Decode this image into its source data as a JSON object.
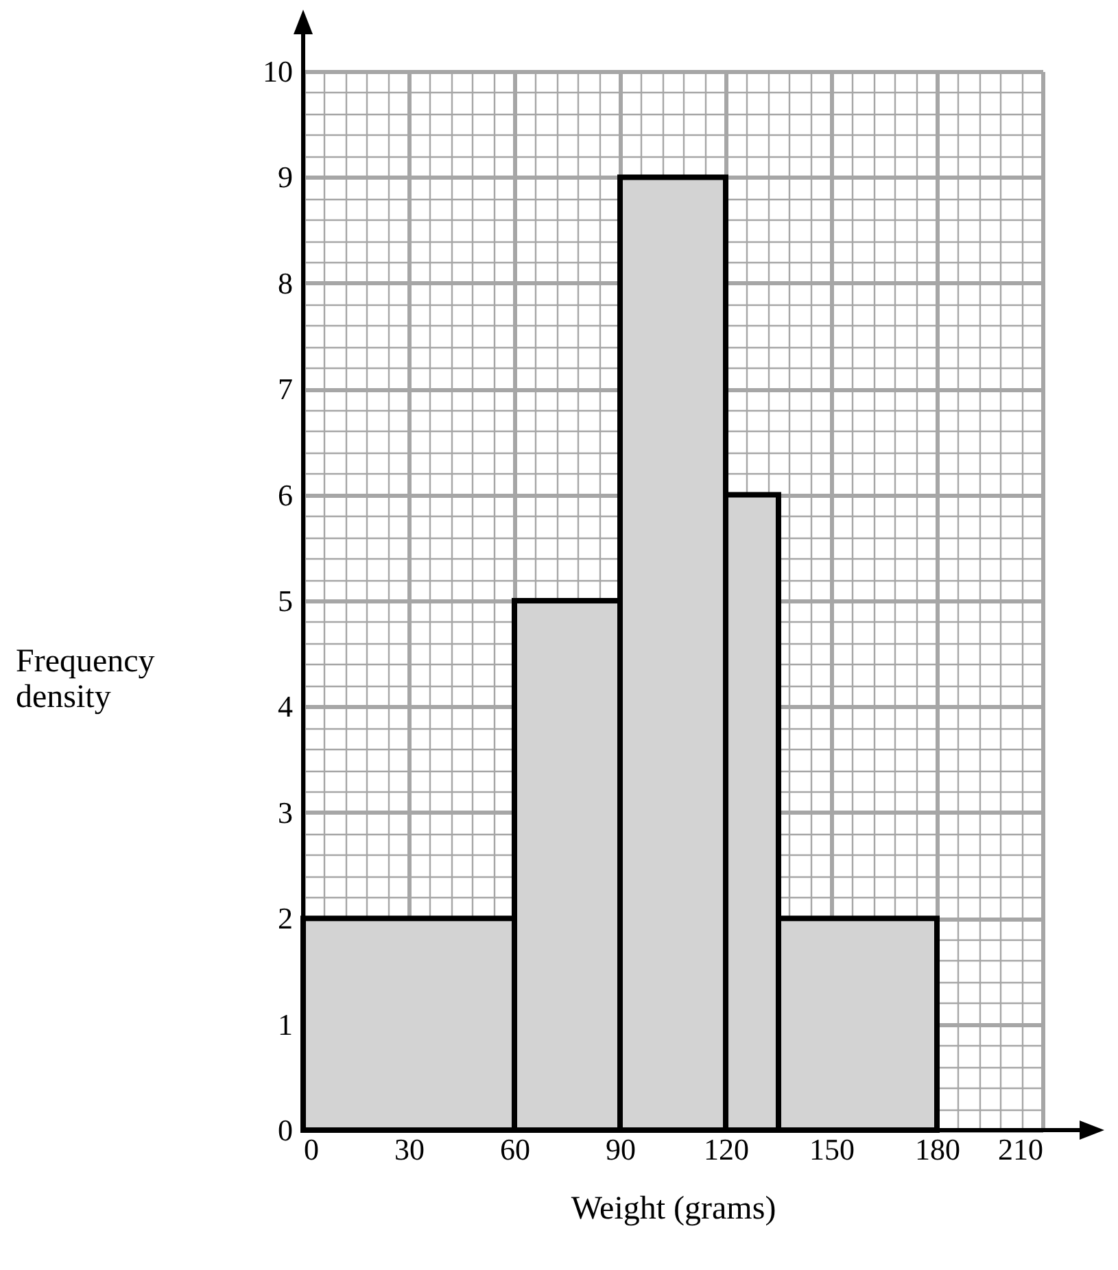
{
  "chart_data": {
    "type": "histogram",
    "xlabel": "Weight (grams)",
    "ylabel": "Frequency density",
    "bins": [
      0,
      60,
      90,
      120,
      135,
      180
    ],
    "values": [
      2,
      5,
      9,
      6,
      2
    ],
    "color": "#d3d3d3",
    "xlim": [
      0,
      210
    ],
    "xticks": [
      0,
      30,
      60,
      90,
      120,
      150,
      180,
      210
    ],
    "ylim": [
      0,
      10
    ],
    "yticks": [
      0,
      1,
      2,
      3,
      4,
      5,
      6,
      7,
      8,
      9,
      10
    ],
    "grid": true
  }
}
